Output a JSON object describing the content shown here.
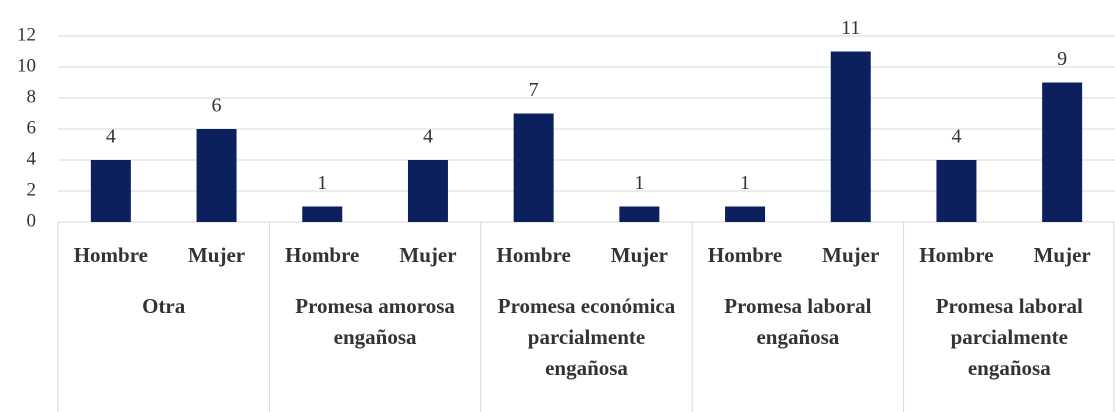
{
  "chart_data": {
    "type": "bar",
    "categories": [
      "Hombre",
      "Mujer",
      "Hombre",
      "Mujer",
      "Hombre",
      "Mujer",
      "Hombre",
      "Mujer",
      "Hombre",
      "Mujer"
    ],
    "groups": [
      "Otra",
      "Promesa amorosa engañosa",
      "Promesa económica parcialmente engañosa",
      "Promesa laboral engañosa",
      "Promesa laboral parcialmente engañosa"
    ],
    "values": [
      4,
      6,
      1,
      4,
      7,
      1,
      1,
      11,
      4,
      9
    ],
    "color": "#0b205c",
    "ylim": [
      0,
      12
    ],
    "yticks": [
      0,
      2,
      4,
      6,
      8,
      10,
      12
    ],
    "grid": true
  }
}
